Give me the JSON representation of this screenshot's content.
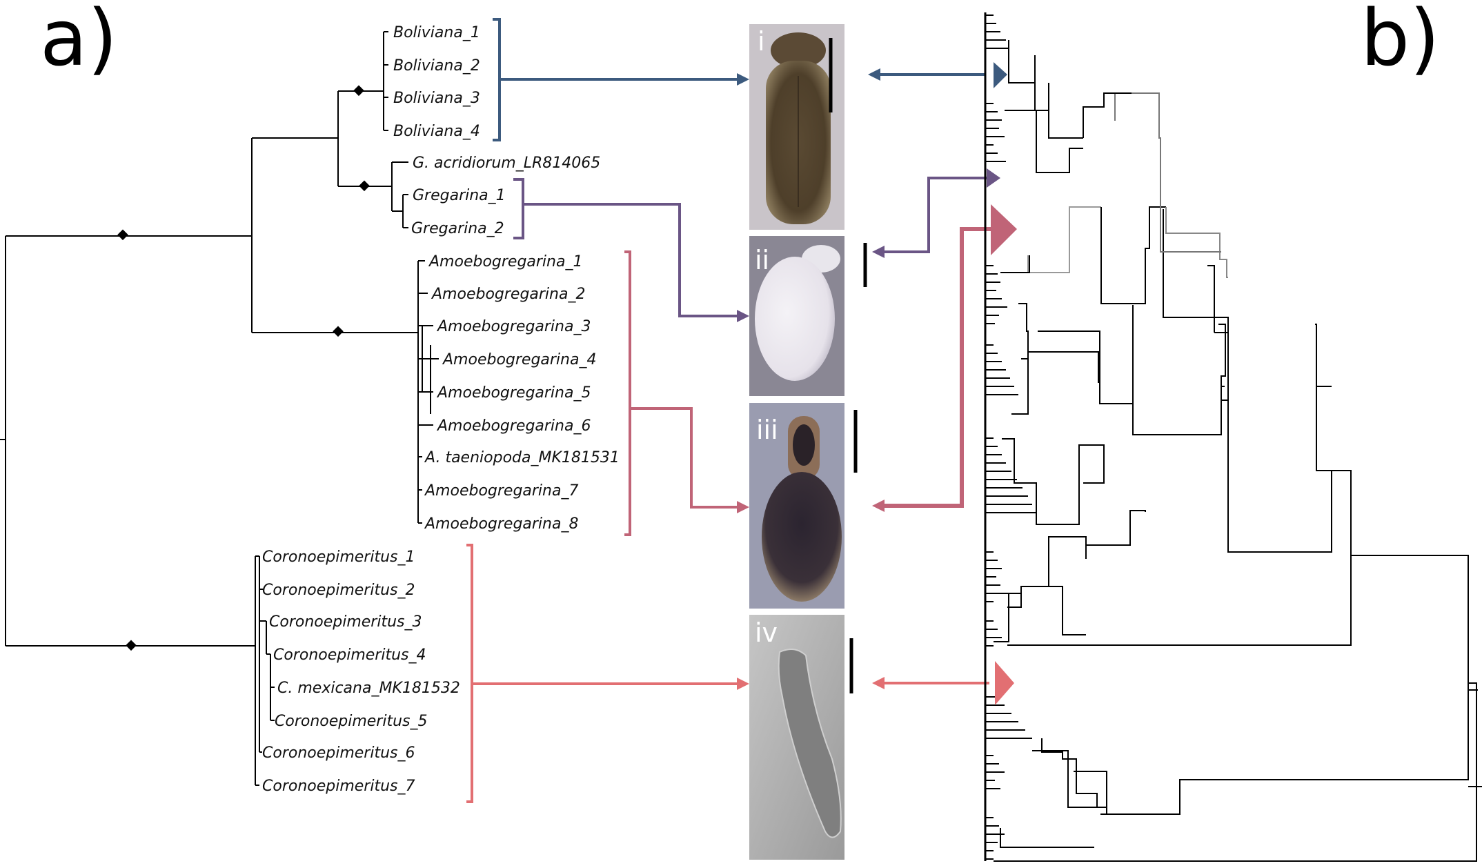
{
  "panels": {
    "left": "a)",
    "right": "b)"
  },
  "colors": {
    "boliviana": "#3c5a7e",
    "gregarina": "#6a5585",
    "amoebogregarina": "#c06477",
    "coronoepimeritus": "#e26f72",
    "tree": "#000000",
    "support_node": "#000000"
  },
  "taxa": {
    "boliviana": [
      "Boliviana_1",
      "Boliviana_2",
      "Boliviana_3",
      "Boliviana_4"
    ],
    "gregarina": [
      "G. acridiorum_LR814065",
      "Gregarina_1",
      "Gregarina_2"
    ],
    "amoebogregarina": [
      "Amoebogregarina_1",
      "Amoebogregarina_2",
      "Amoebogregarina_3",
      "Amoebogregarina_4",
      "Amoebogregarina_5",
      "Amoebogregarina_6",
      "A. taeniopoda_MK181531",
      "Amoebogregarina_7",
      "Amoebogregarina_8"
    ],
    "coronoepimeritus": [
      "Coronoepimeritus_1",
      "Coronoepimeritus_2",
      "Coronoepimeritus_3",
      "Coronoepimeritus_4",
      "C. mexicana_MK181532",
      "Coronoepimeritus_5",
      "Coronoepimeritus_6",
      "Coronoepimeritus_7"
    ]
  },
  "images": [
    {
      "label": "i",
      "subject": "boliviana-gamont"
    },
    {
      "label": "ii",
      "subject": "gregarina-gamont"
    },
    {
      "label": "iii",
      "subject": "amoebogregarina-gamont"
    },
    {
      "label": "iv",
      "subject": "coronoepimeritus-gamont"
    }
  ]
}
